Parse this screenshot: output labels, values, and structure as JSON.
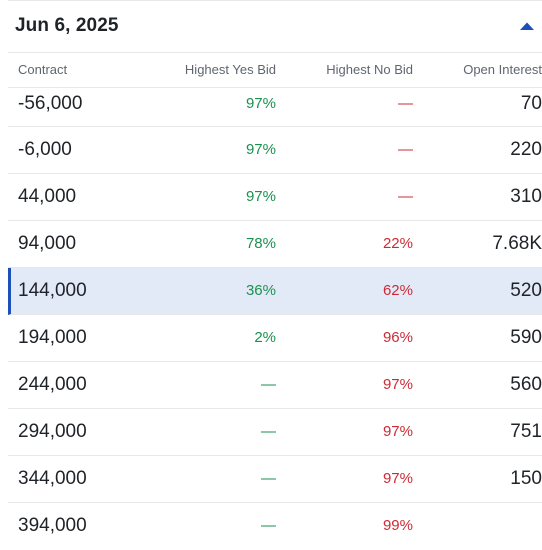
{
  "header": {
    "date": "Jun 6, 2025",
    "collapse_icon": "caret-up-icon",
    "accent": "#1c4fb8"
  },
  "columns": {
    "contract": "Contract",
    "yes_bid": "Highest Yes Bid",
    "no_bid": "Highest No Bid",
    "open_interest": "Open Interest"
  },
  "colors": {
    "yes": "#1a9150",
    "no": "#cc2b36",
    "selected_bg": "#e3eaf7"
  },
  "rows": [
    {
      "strike": "-56,000",
      "yes": "97%",
      "no": "—",
      "oi": "70",
      "selected": false
    },
    {
      "strike": "-6,000",
      "yes": "97%",
      "no": "—",
      "oi": "220",
      "selected": false
    },
    {
      "strike": "44,000",
      "yes": "97%",
      "no": "—",
      "oi": "310",
      "selected": false
    },
    {
      "strike": "94,000",
      "yes": "78%",
      "no": "22%",
      "oi": "7.68K",
      "selected": false
    },
    {
      "strike": "144,000",
      "yes": "36%",
      "no": "62%",
      "oi": "520",
      "selected": true
    },
    {
      "strike": "194,000",
      "yes": "2%",
      "no": "96%",
      "oi": "590",
      "selected": false
    },
    {
      "strike": "244,000",
      "yes": "—",
      "no": "97%",
      "oi": "560",
      "selected": false
    },
    {
      "strike": "294,000",
      "yes": "—",
      "no": "97%",
      "oi": "751",
      "selected": false
    },
    {
      "strike": "344,000",
      "yes": "—",
      "no": "97%",
      "oi": "150",
      "selected": false
    },
    {
      "strike": "394,000",
      "yes": "—",
      "no": "99%",
      "oi": "",
      "selected": false
    }
  ]
}
